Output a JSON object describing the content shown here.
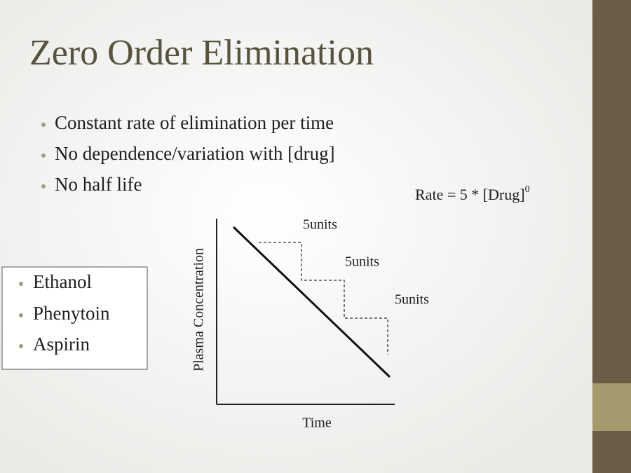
{
  "title": "Zero Order Elimination",
  "bullets": [
    "Constant rate of elimination per time",
    "No dependence/variation with [drug]",
    "No half life"
  ],
  "formula": {
    "text": "Rate = 5 * [Drug]",
    "exponent": "0"
  },
  "examples": [
    "Ethanol",
    "Phenytoin",
    "Aspirin"
  ],
  "graph": {
    "y_label": "Plasma Concentration",
    "x_label": "Time",
    "step_labels": [
      "5units",
      "5units",
      "5units"
    ]
  }
}
